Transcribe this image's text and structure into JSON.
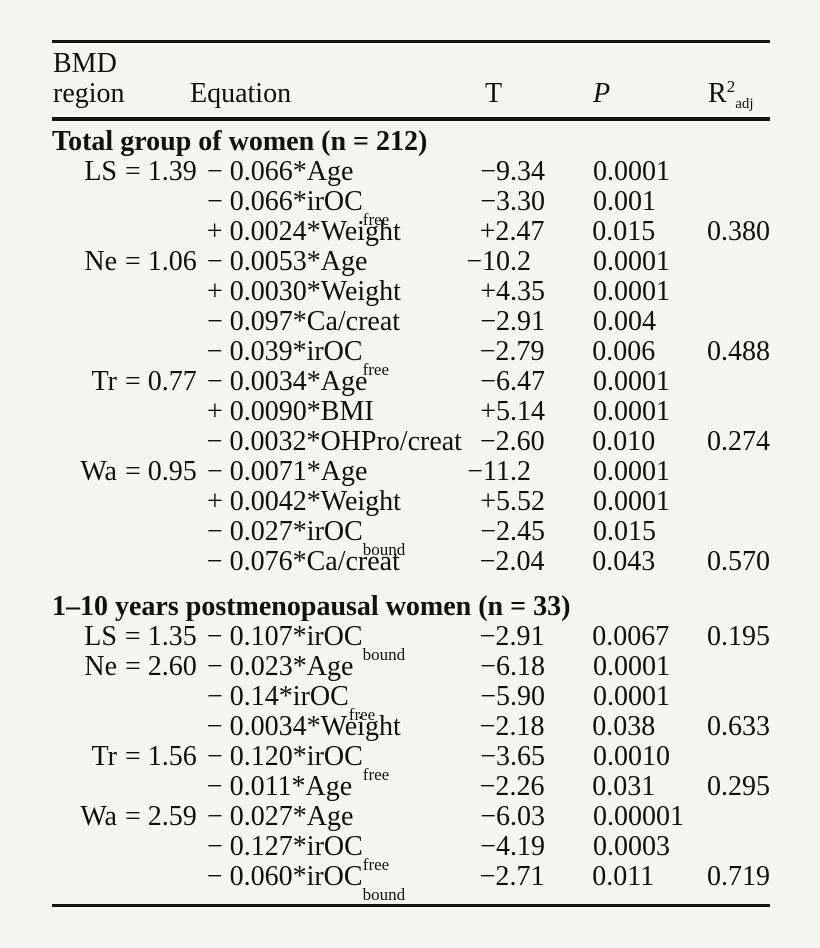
{
  "table": {
    "header": {
      "region_line1": "BMD",
      "region_line2": "region",
      "equation": "Equation",
      "t": "T",
      "p": "P",
      "r2_base": "R",
      "r2_sup": "2",
      "r2_sub": "adj"
    },
    "sections": [
      {
        "title": "Total group of women (n = 212)",
        "rows": [
          {
            "label": "LS",
            "pre": "= 1.39",
            "term": "− 0.066*Age",
            "term_sub": "",
            "t": "−9.34",
            "p": "0.0001",
            "r2": ""
          },
          {
            "label": "",
            "pre": "",
            "term": "− 0.066*irOC",
            "term_sub": "free",
            "t": "−3.30",
            "p": "0.001",
            "r2": ""
          },
          {
            "label": "",
            "pre": "",
            "term": "+ 0.0024*Weight",
            "term_sub": "",
            "t": "+2.47",
            "p": "0.015",
            "r2": "0.380"
          },
          {
            "label": "Ne",
            "pre": "= 1.06",
            "term": "− 0.0053*Age",
            "term_sub": "",
            "t": "−10.2",
            "p": "0.0001",
            "r2": ""
          },
          {
            "label": "",
            "pre": "",
            "term": "+ 0.0030*Weight",
            "term_sub": "",
            "t": "+4.35",
            "p": "0.0001",
            "r2": ""
          },
          {
            "label": "",
            "pre": "",
            "term": "− 0.097*Ca/creat",
            "term_sub": "",
            "t": "−2.91",
            "p": "0.004",
            "r2": ""
          },
          {
            "label": "",
            "pre": "",
            "term": "− 0.039*irOC",
            "term_sub": "free",
            "t": "−2.79",
            "p": "0.006",
            "r2": "0.488"
          },
          {
            "label": "Tr",
            "pre": "= 0.77",
            "term": "− 0.0034*Age",
            "term_sub": "",
            "t": "−6.47",
            "p": "0.0001",
            "r2": ""
          },
          {
            "label": "",
            "pre": "",
            "term": "+ 0.0090*BMI",
            "term_sub": "",
            "t": "+5.14",
            "p": "0.0001",
            "r2": ""
          },
          {
            "label": "",
            "pre": "",
            "term": "− 0.0032*OHPro/creat",
            "term_sub": "",
            "t": "−2.60",
            "p": "0.010",
            "r2": "0.274"
          },
          {
            "label": "Wa",
            "pre": "= 0.95",
            "term": "− 0.0071*Age",
            "term_sub": "",
            "t": "−11.2",
            "p": "0.0001",
            "r2": ""
          },
          {
            "label": "",
            "pre": "",
            "term": "+ 0.0042*Weight",
            "term_sub": "",
            "t": "+5.52",
            "p": "0.0001",
            "r2": ""
          },
          {
            "label": "",
            "pre": "",
            "term": "− 0.027*irOC",
            "term_sub": "bound",
            "t": "−2.45",
            "p": "0.015",
            "r2": ""
          },
          {
            "label": "",
            "pre": "",
            "term": "− 0.076*Ca/creat",
            "term_sub": "",
            "t": "−2.04",
            "p": "0.043",
            "r2": "0.570"
          }
        ]
      },
      {
        "title": "1–10 years postmenopausal women (n = 33)",
        "rows": [
          {
            "label": "LS",
            "pre": "= 1.35",
            "term": "− 0.107*irOC",
            "term_sub": "bound",
            "t": "−2.91",
            "p": "0.0067",
            "r2": "0.195"
          },
          {
            "label": "Ne",
            "pre": "= 2.60",
            "term": "− 0.023*Age",
            "term_sub": "",
            "t": "−6.18",
            "p": "0.0001",
            "r2": ""
          },
          {
            "label": "",
            "pre": "",
            "term": "− 0.14*irOC",
            "term_sub": "free",
            "t": "−5.90",
            "p": "0.0001",
            "r2": ""
          },
          {
            "label": "",
            "pre": "",
            "term": "− 0.0034*Weight",
            "term_sub": "",
            "t": "−2.18",
            "p": "0.038",
            "r2": "0.633"
          },
          {
            "label": "Tr",
            "pre": "= 1.56",
            "term": "− 0.120*irOC",
            "term_sub": "free",
            "t": "−3.65",
            "p": "0.0010",
            "r2": ""
          },
          {
            "label": "",
            "pre": "",
            "term": "− 0.011*Age",
            "term_sub": "",
            "t": "−2.26",
            "p": "0.031",
            "r2": "0.295"
          },
          {
            "label": "Wa",
            "pre": "= 2.59",
            "term": "− 0.027*Age",
            "term_sub": "",
            "t": "−6.03",
            "p": "0.00001",
            "r2": ""
          },
          {
            "label": "",
            "pre": "",
            "term": "− 0.127*irOC",
            "term_sub": "free",
            "t": "−4.19",
            "p": "0.0003",
            "r2": ""
          },
          {
            "label": "",
            "pre": "",
            "term": "− 0.060*irOC",
            "term_sub": "bound",
            "t": "−2.71",
            "p": "0.011",
            "r2": "0.719"
          }
        ]
      }
    ]
  }
}
